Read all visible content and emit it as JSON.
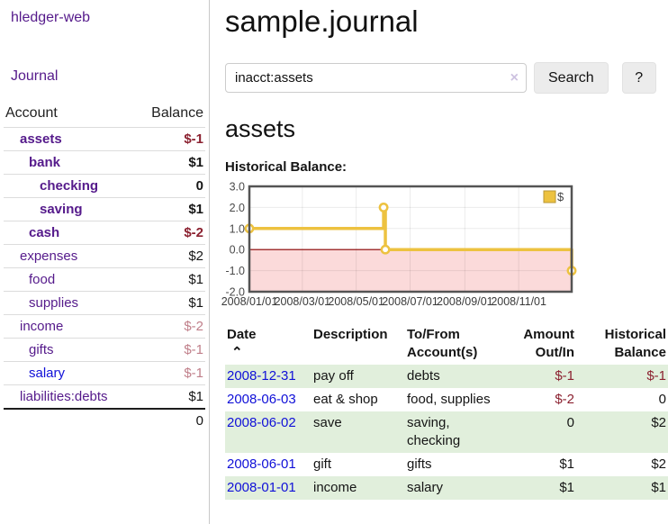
{
  "app": {
    "accent_purple": "#551a8b",
    "link_blue": "#1010d8",
    "negative_red": "#8b2130",
    "negative_light": "#c07f8a",
    "stripe_green": "#e1efdc"
  },
  "sidebar": {
    "brand": "hledger-web",
    "journal_link": "Journal",
    "table": {
      "col_account": "Account",
      "col_balance": "Balance",
      "accounts": [
        {
          "name": "assets",
          "balance": "$-1"
        },
        {
          "name": "bank",
          "balance": "$1"
        },
        {
          "name": "checking",
          "balance": "0"
        },
        {
          "name": "saving",
          "balance": "$1"
        },
        {
          "name": "cash",
          "balance": "$-2"
        },
        {
          "name": "expenses",
          "balance": "$2"
        },
        {
          "name": "food",
          "balance": "$1"
        },
        {
          "name": "supplies",
          "balance": "$1"
        },
        {
          "name": "income",
          "balance": "$-2"
        },
        {
          "name": "gifts",
          "balance": "$-1"
        },
        {
          "name": "salary",
          "balance": "$-1"
        },
        {
          "name": "liabilities:debts",
          "balance": "$1"
        }
      ],
      "total": "0"
    }
  },
  "main": {
    "title": "sample.journal",
    "search": {
      "value": "inacct:assets",
      "clear_icon": "×",
      "button": "Search",
      "help_button": "?"
    },
    "heading": "assets",
    "chart_label": "Historical Balance:"
  },
  "chart_data": {
    "type": "line",
    "title": "Historical Balance:",
    "step": "after",
    "x_domain_days": [
      0,
      365
    ],
    "ylim": [
      -2,
      3
    ],
    "y_ticks": [
      3.0,
      2.0,
      1.0,
      0.0,
      -1.0,
      -2.0
    ],
    "x_ticks": [
      {
        "label": "2008/01/01",
        "day": 0
      },
      {
        "label": "2008/03/01",
        "day": 60
      },
      {
        "label": "2008/05/01",
        "day": 121
      },
      {
        "label": "2008/07/01",
        "day": 182
      },
      {
        "label": "2008/09/01",
        "day": 244
      },
      {
        "label": "2008/11/01",
        "day": 305
      }
    ],
    "series": [
      {
        "name": "$",
        "color": "#edc240",
        "points": [
          {
            "date": "2008/01/01",
            "day": 0,
            "value": 1.0
          },
          {
            "date": "2008/06/01",
            "day": 152,
            "value": 2.0
          },
          {
            "date": "2008/06/03",
            "day": 154,
            "value": 0.0
          },
          {
            "date": "2008/12/31",
            "day": 365,
            "value": -1.0
          }
        ]
      }
    ],
    "legend": {
      "label": "$",
      "position": "top-right"
    },
    "negative_region_color": "#fbdada",
    "zero_line_color": "#8b0000",
    "grid": true
  },
  "register": {
    "headers": {
      "date": "Date",
      "sort_icon": "⌃",
      "description": "Description",
      "tofrom_1": "To/From",
      "tofrom_2": "Account(s)",
      "amount_1": "Amount",
      "amount_2": "Out/In",
      "hist_1": "Historical",
      "hist_2": "Balance"
    },
    "rows": [
      {
        "date": "2008-12-31",
        "description": "pay off",
        "accounts": "debts",
        "amount": "$-1",
        "balance": "$-1"
      },
      {
        "date": "2008-06-03",
        "description": "eat & shop",
        "accounts": "food, supplies",
        "amount": "$-2",
        "balance": "0"
      },
      {
        "date": "2008-06-02",
        "description": "save",
        "accounts": "saving, checking",
        "amount": "0",
        "balance": "$2"
      },
      {
        "date": "2008-06-01",
        "description": "gift",
        "accounts": "gifts",
        "amount": "$1",
        "balance": "$2"
      },
      {
        "date": "2008-01-01",
        "description": "income",
        "accounts": "salary",
        "amount": "$1",
        "balance": "$1"
      }
    ]
  }
}
